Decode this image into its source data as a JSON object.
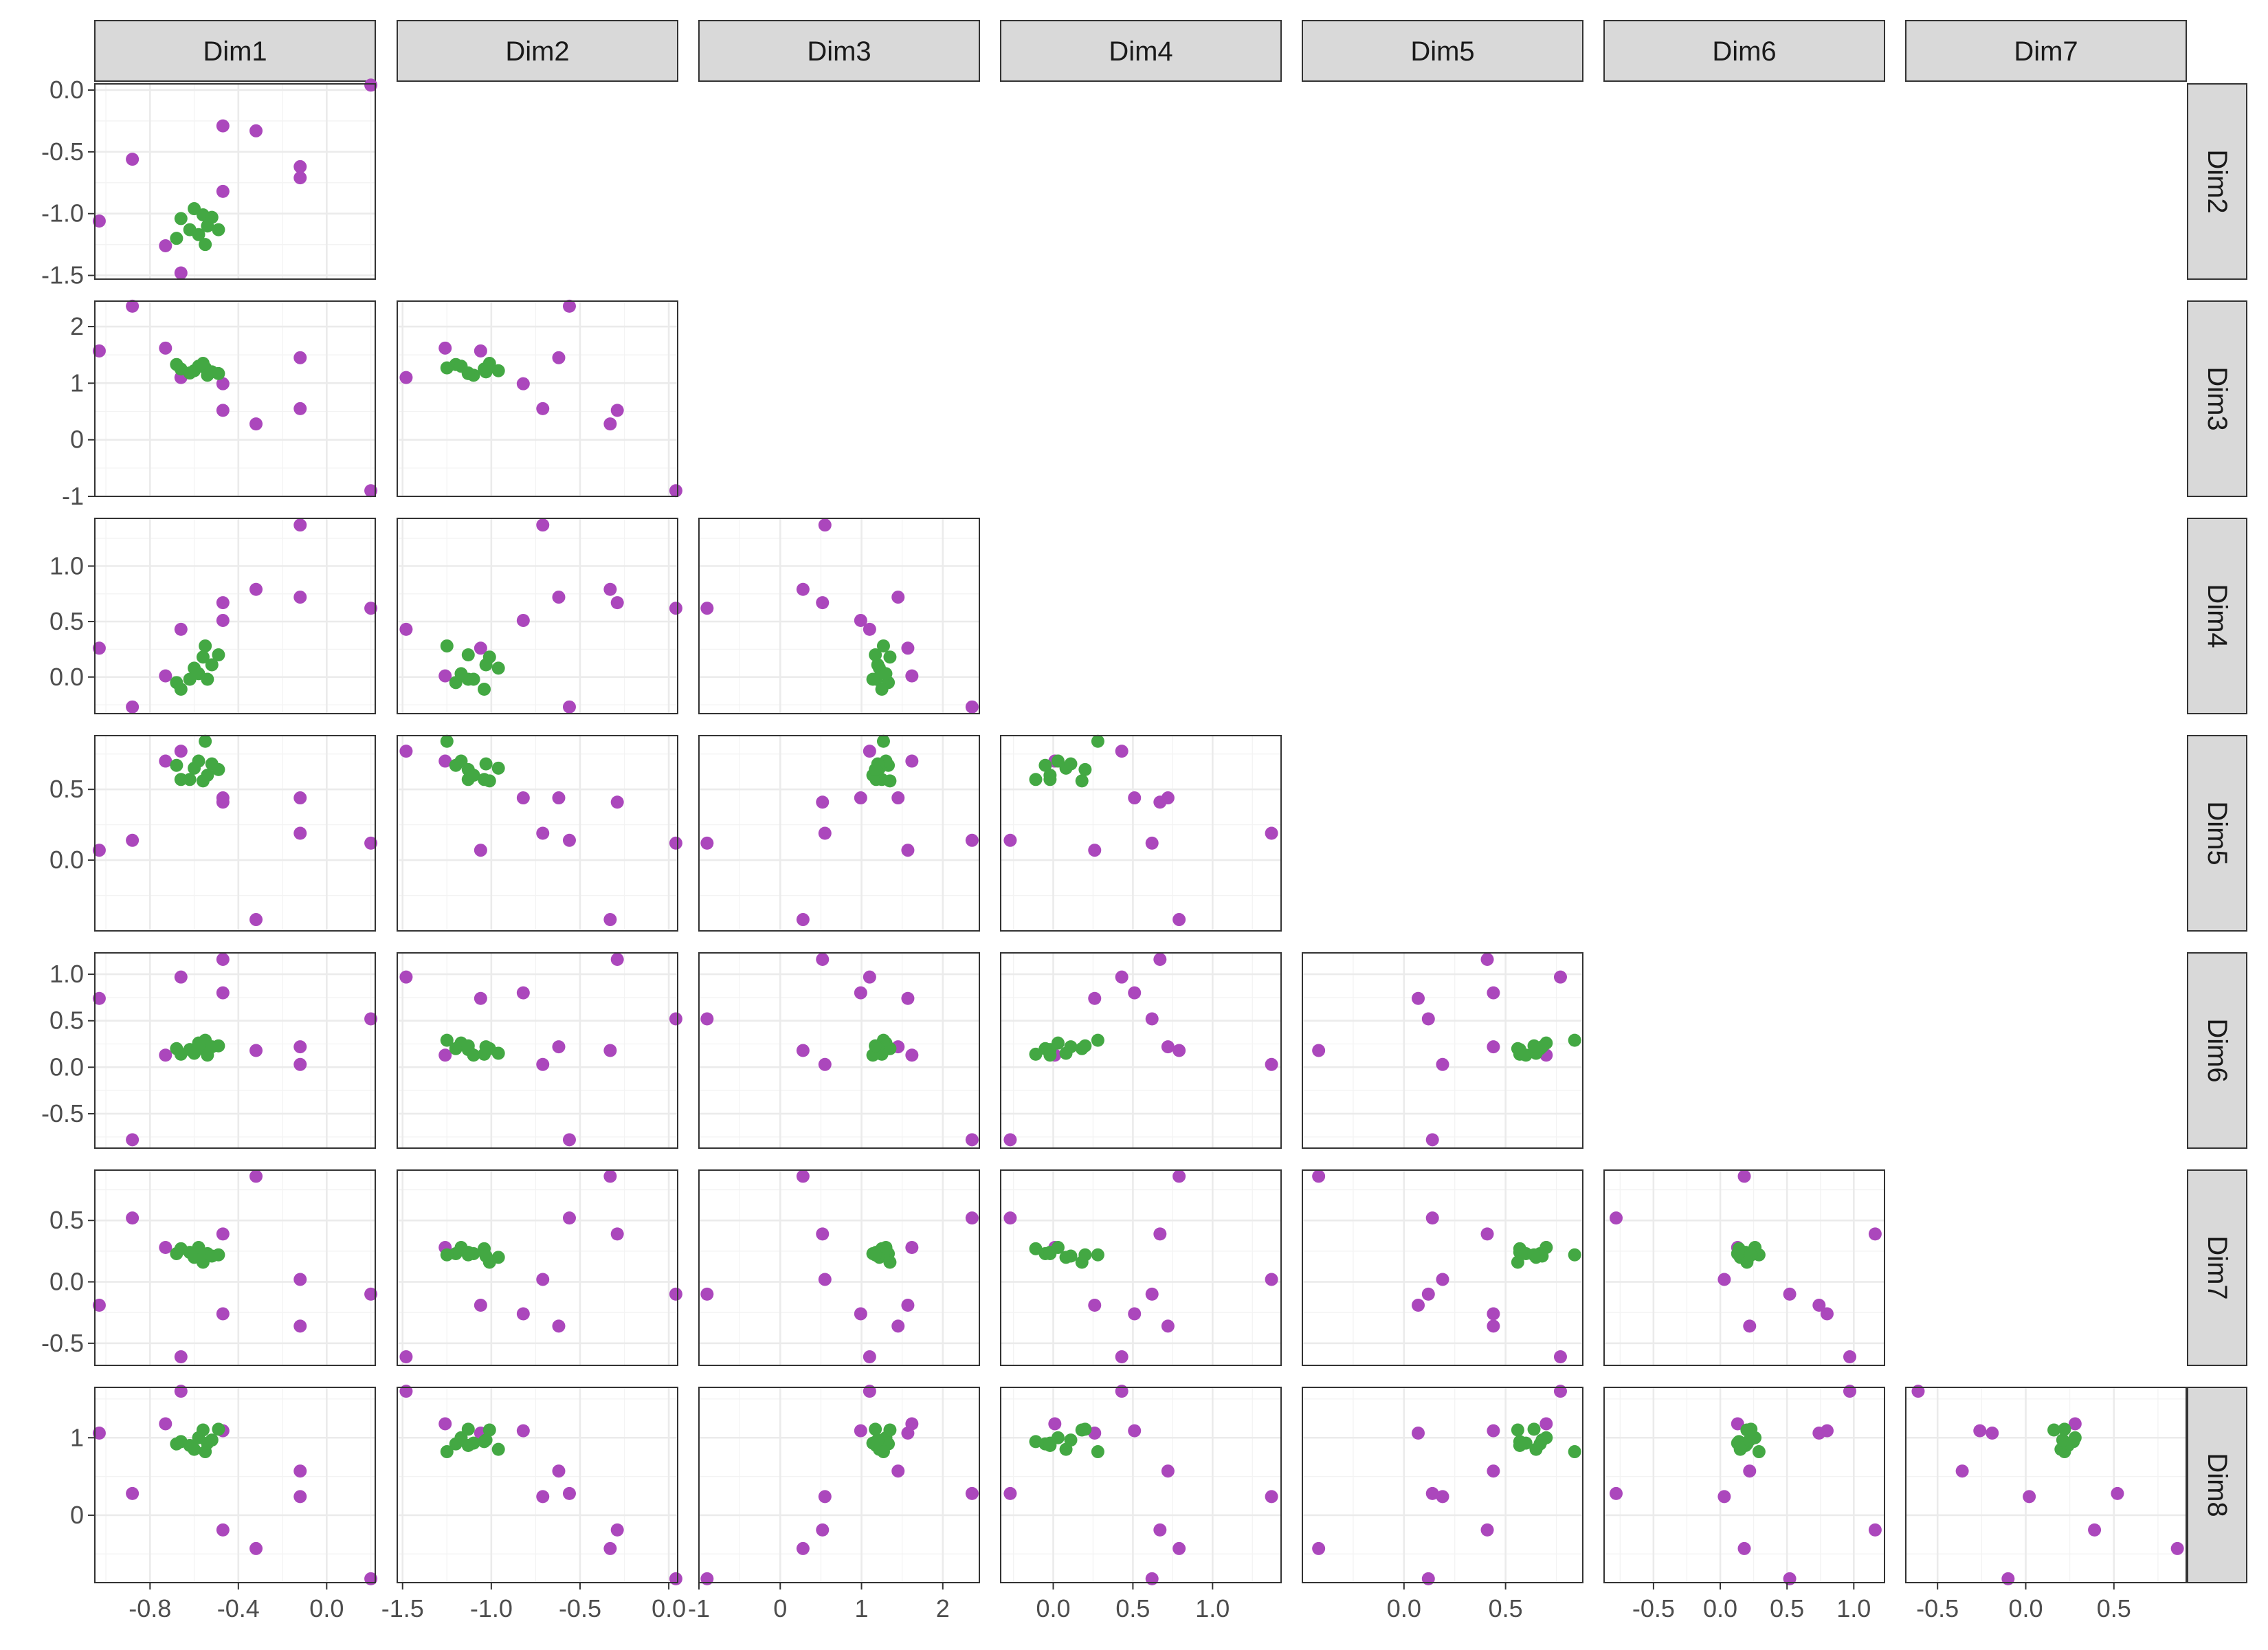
{
  "chart_data": {
    "type": "scatter",
    "layout": "pairs-matrix-lower-triangle",
    "column_strips": [
      "Dim1",
      "Dim2",
      "Dim3",
      "Dim4",
      "Dim5",
      "Dim6",
      "Dim7"
    ],
    "row_strips": [
      "Dim2",
      "Dim3",
      "Dim4",
      "Dim5",
      "Dim6",
      "Dim7",
      "Dim8"
    ],
    "colors": {
      "group1": "#ab47bc",
      "group2": "#43a843"
    },
    "grid": true,
    "axes": {
      "Dim1": {
        "range": [
          -1.05,
          0.22
        ],
        "ticks": [
          -0.8,
          -0.4,
          0.0
        ],
        "tick_labels": [
          "-0.8",
          "-0.4",
          "0.0"
        ],
        "minor": [
          -1.0,
          -0.6,
          -0.2,
          0.2
        ]
      },
      "Dim2": {
        "range": [
          -1.53,
          0.05
        ],
        "ticks": [
          -1.5,
          -1.0,
          -0.5,
          0.0
        ],
        "tick_labels": [
          "-1.5",
          "-1.0",
          "-0.5",
          "0.0"
        ],
        "minor": [
          -1.25,
          -0.75,
          -0.25
        ]
      },
      "Dim3": {
        "range": [
          -1.0,
          2.45
        ],
        "ticks": [
          -1,
          0,
          1,
          2
        ],
        "tick_labels": [
          "-1",
          "0",
          "1",
          "2"
        ],
        "minor": [
          -0.5,
          0.5,
          1.5
        ]
      },
      "Dim4": {
        "range": [
          -0.33,
          1.43
        ],
        "ticks": [
          0.0,
          0.5,
          1.0
        ],
        "tick_labels": [
          "0.0",
          "0.5",
          "1.0"
        ],
        "minor": [
          -0.25,
          0.25,
          0.75,
          1.25
        ]
      },
      "Dim5": {
        "range": [
          -0.5,
          0.88
        ],
        "ticks": [
          0.0,
          0.5
        ],
        "tick_labels": [
          "0.0",
          "0.5"
        ],
        "minor": [
          -0.25,
          0.25,
          0.75
        ]
      },
      "Dim6": {
        "range": [
          -0.87,
          1.23
        ],
        "ticks": [
          -0.5,
          0.0,
          0.5,
          1.0
        ],
        "tick_labels": [
          "-0.5",
          "0.0",
          "0.5",
          "1.0"
        ],
        "minor": [
          -0.75,
          -0.25,
          0.25,
          0.75
        ]
      },
      "Dim7": {
        "range": [
          -0.68,
          0.91
        ],
        "ticks": [
          -0.5,
          0.0,
          0.5
        ],
        "tick_labels": [
          "-0.5",
          "0.0",
          "0.5"
        ],
        "minor": [
          -0.25,
          0.25,
          0.75
        ]
      },
      "Dim8": {
        "range": [
          -0.87,
          1.65
        ],
        "ticks": [
          0,
          1
        ],
        "tick_labels": [
          "0",
          "1"
        ],
        "minor": [
          -0.5,
          0.5,
          1.5
        ]
      }
    },
    "points": [
      {
        "group": "group1",
        "Dim1": 0.2,
        "Dim2": 0.04,
        "Dim3": -0.9,
        "Dim4": 0.62,
        "Dim5": 0.12,
        "Dim6": 0.52,
        "Dim7": -0.1,
        "Dim8": -0.82
      },
      {
        "group": "group1",
        "Dim1": -0.12,
        "Dim2": -0.62,
        "Dim3": 1.45,
        "Dim4": 0.72,
        "Dim5": 0.44,
        "Dim6": 0.22,
        "Dim7": -0.36,
        "Dim8": 0.57
      },
      {
        "group": "group1",
        "Dim1": -0.12,
        "Dim2": -0.71,
        "Dim3": 0.55,
        "Dim4": 1.37,
        "Dim5": 0.19,
        "Dim6": 0.03,
        "Dim7": 0.02,
        "Dim8": 0.24
      },
      {
        "group": "group1",
        "Dim1": -0.32,
        "Dim2": -0.33,
        "Dim3": 0.28,
        "Dim4": 0.79,
        "Dim5": -0.42,
        "Dim6": 0.18,
        "Dim7": 0.86,
        "Dim8": -0.43
      },
      {
        "group": "group1",
        "Dim1": -0.47,
        "Dim2": -0.29,
        "Dim3": 0.52,
        "Dim4": 0.67,
        "Dim5": 0.41,
        "Dim6": 1.16,
        "Dim7": 0.39,
        "Dim8": -0.19
      },
      {
        "group": "group1",
        "Dim1": -0.47,
        "Dim2": -0.82,
        "Dim3": 0.99,
        "Dim4": 0.51,
        "Dim5": 0.44,
        "Dim6": 0.8,
        "Dim7": -0.26,
        "Dim8": 1.09
      },
      {
        "group": "group1",
        "Dim1": -0.88,
        "Dim2": -0.56,
        "Dim3": 2.36,
        "Dim4": -0.27,
        "Dim5": 0.14,
        "Dim6": -0.78,
        "Dim7": 0.52,
        "Dim8": 0.28
      },
      {
        "group": "group1",
        "Dim1": -1.03,
        "Dim2": -1.06,
        "Dim3": 1.57,
        "Dim4": 0.26,
        "Dim5": 0.07,
        "Dim6": 0.74,
        "Dim7": -0.19,
        "Dim8": 1.06
      },
      {
        "group": "group1",
        "Dim1": -0.66,
        "Dim2": -1.48,
        "Dim3": 1.1,
        "Dim4": 0.43,
        "Dim5": 0.77,
        "Dim6": 0.97,
        "Dim7": -0.61,
        "Dim8": 1.6
      },
      {
        "group": "group1",
        "Dim1": -0.73,
        "Dim2": -1.26,
        "Dim3": 1.62,
        "Dim4": 0.01,
        "Dim5": 0.7,
        "Dim6": 0.13,
        "Dim7": 0.28,
        "Dim8": 1.18
      },
      {
        "group": "group2",
        "Dim1": -0.68,
        "Dim2": -1.2,
        "Dim3": 1.33,
        "Dim4": -0.05,
        "Dim5": 0.67,
        "Dim6": 0.2,
        "Dim7": 0.23,
        "Dim8": 0.92
      },
      {
        "group": "group2",
        "Dim1": -0.66,
        "Dim2": -1.04,
        "Dim3": 1.25,
        "Dim4": -0.11,
        "Dim5": 0.57,
        "Dim6": 0.14,
        "Dim7": 0.27,
        "Dim8": 0.95
      },
      {
        "group": "group2",
        "Dim1": -0.62,
        "Dim2": -1.13,
        "Dim3": 1.18,
        "Dim4": -0.02,
        "Dim5": 0.57,
        "Dim6": 0.19,
        "Dim7": 0.24,
        "Dim8": 0.9
      },
      {
        "group": "group2",
        "Dim1": -0.6,
        "Dim2": -0.96,
        "Dim3": 1.22,
        "Dim4": 0.08,
        "Dim5": 0.65,
        "Dim6": 0.15,
        "Dim7": 0.2,
        "Dim8": 0.85
      },
      {
        "group": "group2",
        "Dim1": -0.58,
        "Dim2": -1.17,
        "Dim3": 1.3,
        "Dim4": 0.03,
        "Dim5": 0.7,
        "Dim6": 0.26,
        "Dim7": 0.28,
        "Dim8": 1.0
      },
      {
        "group": "group2",
        "Dim1": -0.56,
        "Dim2": -1.01,
        "Dim3": 1.35,
        "Dim4": 0.18,
        "Dim5": 0.56,
        "Dim6": 0.2,
        "Dim7": 0.16,
        "Dim8": 1.1
      },
      {
        "group": "group2",
        "Dim1": -0.55,
        "Dim2": -1.25,
        "Dim3": 1.27,
        "Dim4": 0.28,
        "Dim5": 0.84,
        "Dim6": 0.29,
        "Dim7": 0.22,
        "Dim8": 0.82
      },
      {
        "group": "group2",
        "Dim1": -0.54,
        "Dim2": -1.1,
        "Dim3": 1.14,
        "Dim4": -0.02,
        "Dim5": 0.6,
        "Dim6": 0.13,
        "Dim7": 0.23,
        "Dim8": 0.93
      },
      {
        "group": "group2",
        "Dim1": -0.52,
        "Dim2": -1.03,
        "Dim3": 1.2,
        "Dim4": 0.11,
        "Dim5": 0.68,
        "Dim6": 0.22,
        "Dim7": 0.21,
        "Dim8": 0.97
      },
      {
        "group": "group2",
        "Dim1": -0.49,
        "Dim2": -1.13,
        "Dim3": 1.17,
        "Dim4": 0.2,
        "Dim5": 0.64,
        "Dim6": 0.23,
        "Dim7": 0.22,
        "Dim8": 1.11
      }
    ]
  }
}
